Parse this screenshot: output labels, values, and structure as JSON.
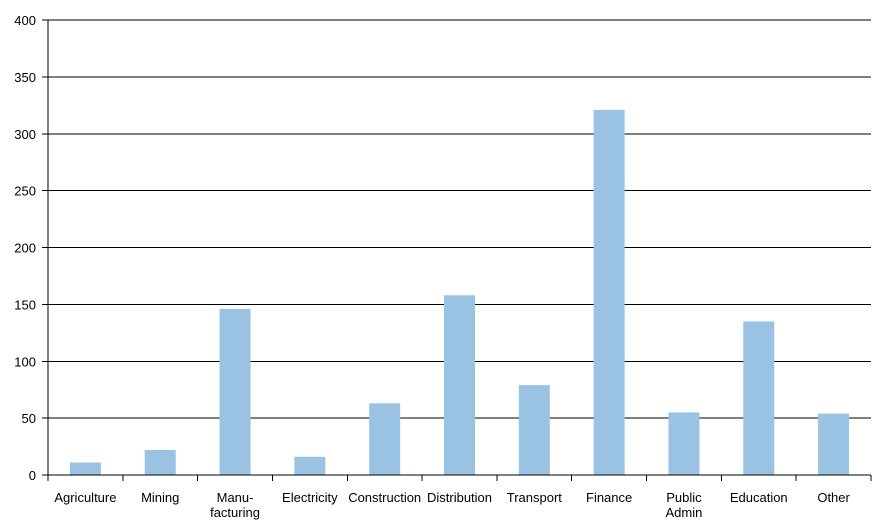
{
  "chart_data": {
    "type": "bar",
    "categories": [
      "Agriculture",
      "Mining",
      "Manu-\nfacturing",
      "Electricity",
      "Construction",
      "Distribution",
      "Transport",
      "Finance",
      "Public\nAdmin",
      "Education",
      "Other"
    ],
    "values": [
      11,
      22,
      146,
      16,
      63,
      158,
      79,
      321,
      55,
      135,
      54
    ],
    "ylim": [
      0,
      400
    ],
    "yticks": [
      0,
      50,
      100,
      150,
      200,
      250,
      300,
      350,
      400
    ],
    "ytick_labels": [
      "0",
      "50",
      "100",
      "150",
      "200",
      "250",
      "300",
      "350",
      "400"
    ],
    "grid": true,
    "bar_color": "#9ac3e3",
    "title": "",
    "xlabel": "",
    "ylabel": ""
  }
}
